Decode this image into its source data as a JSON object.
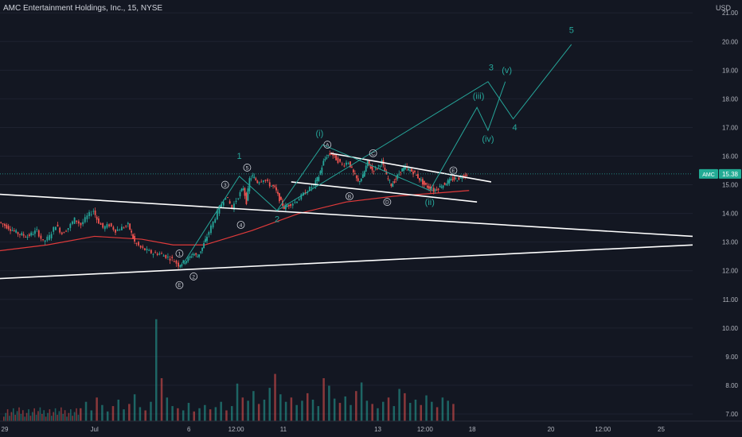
{
  "header": {
    "title": "AMC Entertainment Holdings, Inc., 15, NYSE",
    "currency": "USD"
  },
  "colors": {
    "background": "#131722",
    "up": "#26a69a",
    "down": "#ef5350",
    "wave": "#26a69a",
    "ma": "#e03a3a",
    "line": "#ffffff",
    "axis_text": "#b2b5be",
    "price_badge": "#22ab94"
  },
  "chart_data": {
    "type": "candlestick",
    "symbol": "AMC",
    "last_price": 15.38,
    "last_price_label": "15.38",
    "y_axis": {
      "range": [
        6.75,
        21.45
      ],
      "ticks": [
        {
          "value": 21,
          "label": "21.00"
        },
        {
          "value": 20,
          "label": "20.00"
        },
        {
          "value": 19,
          "label": "19.00"
        },
        {
          "value": 18,
          "label": "18.00"
        },
        {
          "value": 17,
          "label": "17.00"
        },
        {
          "value": 16,
          "label": "16.00"
        },
        {
          "value": 15,
          "label": "15.00"
        },
        {
          "value": 14,
          "label": "14.00"
        },
        {
          "value": 13,
          "label": "13.00"
        },
        {
          "value": 12,
          "label": "12.00"
        },
        {
          "value": 11,
          "label": "11.00"
        },
        {
          "value": 10,
          "label": "10.00"
        },
        {
          "value": 9,
          "label": "9.00"
        },
        {
          "value": 8,
          "label": "8.00"
        },
        {
          "value": 7,
          "label": "7.00"
        }
      ]
    },
    "x_axis": {
      "ticks": [
        {
          "label": "29",
          "x": 0
        },
        {
          "label": "Jul",
          "x": 60
        },
        {
          "label": "6",
          "x": 120
        },
        {
          "label": "12:00",
          "x": 150
        },
        {
          "label": "11",
          "x": 180
        },
        {
          "label": "13",
          "x": 240
        },
        {
          "label": "12:00",
          "x": 270
        },
        {
          "label": "18",
          "x": 300
        },
        {
          "label": "20",
          "x": 350
        },
        {
          "label": "12:00",
          "x": 383
        },
        {
          "label": "25",
          "x": 420
        }
      ]
    },
    "price_path": [
      [
        0,
        13.7
      ],
      [
        6,
        13.5
      ],
      [
        12,
        13.3
      ],
      [
        18,
        13.2
      ],
      [
        24,
        13.4
      ],
      [
        28,
        13.0
      ],
      [
        32,
        13.2
      ],
      [
        36,
        13.6
      ],
      [
        40,
        13.3
      ],
      [
        44,
        13.5
      ],
      [
        48,
        13.8
      ],
      [
        52,
        13.6
      ],
      [
        56,
        13.9
      ],
      [
        60,
        14.1
      ],
      [
        62,
        13.8
      ],
      [
        66,
        13.5
      ],
      [
        70,
        13.6
      ],
      [
        74,
        13.4
      ],
      [
        78,
        13.5
      ],
      [
        82,
        13.6
      ],
      [
        84,
        13.3
      ],
      [
        86,
        13.0
      ],
      [
        90,
        12.8
      ],
      [
        94,
        12.7
      ],
      [
        98,
        12.6
      ],
      [
        102,
        12.6
      ],
      [
        106,
        12.5
      ],
      [
        110,
        12.4
      ],
      [
        114,
        12.2
      ],
      [
        117,
        12.3
      ],
      [
        120,
        12.4
      ],
      [
        123,
        12.6
      ],
      [
        126,
        12.5
      ],
      [
        129,
        12.8
      ],
      [
        132,
        13.2
      ],
      [
        136,
        13.7
      ],
      [
        140,
        14.2
      ],
      [
        144,
        14.6
      ],
      [
        148,
        14.2
      ],
      [
        152,
        14.6
      ],
      [
        155,
        14.9
      ],
      [
        157,
        14.4
      ],
      [
        159,
        15.2
      ],
      [
        161,
        15.3
      ],
      [
        164,
        15.1
      ],
      [
        168,
        15.2
      ],
      [
        172,
        15.0
      ],
      [
        175,
        14.9
      ],
      [
        178,
        14.5
      ],
      [
        181,
        14.2
      ],
      [
        184,
        14.3
      ],
      [
        188,
        14.4
      ],
      [
        192,
        14.6
      ],
      [
        196,
        14.8
      ],
      [
        200,
        15.0
      ],
      [
        203,
        15.3
      ],
      [
        206,
        15.8
      ],
      [
        208,
        16.0
      ],
      [
        211,
        16.1
      ],
      [
        214,
        15.9
      ],
      [
        218,
        15.7
      ],
      [
        222,
        15.8
      ],
      [
        225,
        15.4
      ],
      [
        228,
        15.1
      ],
      [
        231,
        15.3
      ],
      [
        234,
        15.8
      ],
      [
        237,
        15.5
      ],
      [
        240,
        15.6
      ],
      [
        243,
        15.8
      ],
      [
        246,
        15.3
      ],
      [
        249,
        15.0
      ],
      [
        252,
        15.2
      ],
      [
        255,
        15.5
      ],
      [
        258,
        15.6
      ],
      [
        261,
        15.5
      ],
      [
        264,
        15.4
      ],
      [
        267,
        15.2
      ],
      [
        270,
        15.0
      ],
      [
        273,
        14.9
      ],
      [
        276,
        14.8
      ],
      [
        279,
        14.9
      ],
      [
        282,
        15.0
      ],
      [
        285,
        15.1
      ],
      [
        288,
        15.2
      ],
      [
        291,
        15.2
      ],
      [
        294,
        15.3
      ],
      [
        297,
        15.38
      ]
    ],
    "moving_average": [
      [
        0,
        12.7
      ],
      [
        30,
        12.9
      ],
      [
        60,
        13.2
      ],
      [
        90,
        13.1
      ],
      [
        110,
        12.9
      ],
      [
        130,
        12.9
      ],
      [
        160,
        13.4
      ],
      [
        190,
        14.0
      ],
      [
        220,
        14.4
      ],
      [
        250,
        14.6
      ],
      [
        275,
        14.7
      ],
      [
        298,
        14.8
      ]
    ],
    "volume": {
      "range": [
        0,
        1
      ],
      "bars": [
        0.12,
        0.18,
        0.1,
        0.22,
        0.15,
        0.09,
        0.14,
        0.2,
        0.11,
        0.16,
        0.25,
        0.13,
        0.1,
        0.18,
        0.95,
        0.4,
        0.22,
        0.14,
        0.12,
        0.1,
        0.17,
        0.09,
        0.12,
        0.15,
        0.11,
        0.13,
        0.18,
        0.1,
        0.14,
        0.35,
        0.22,
        0.19,
        0.28,
        0.16,
        0.2,
        0.31,
        0.44,
        0.25,
        0.18,
        0.22,
        0.15,
        0.19,
        0.26,
        0.2,
        0.14,
        0.4,
        0.33,
        0.21,
        0.17,
        0.23,
        0.15,
        0.28,
        0.36,
        0.19,
        0.16,
        0.12,
        0.18,
        0.22,
        0.14,
        0.3,
        0.26,
        0.17,
        0.2,
        0.15,
        0.24,
        0.18,
        0.13,
        0.22,
        0.19,
        0.16
      ]
    },
    "trendlines": [
      {
        "name": "upper-wedge-line",
        "from": [
          -10,
          14.7
        ],
        "to": [
          440,
          13.2
        ]
      },
      {
        "name": "lower-wedge-line",
        "from": [
          -10,
          11.7
        ],
        "to": [
          440,
          12.9
        ]
      },
      {
        "name": "triangle-upper-line",
        "from": [
          210,
          16.1
        ],
        "to": [
          312,
          15.1
        ]
      },
      {
        "name": "triangle-lower-line",
        "from": [
          185,
          15.1
        ],
        "to": [
          303,
          14.4
        ]
      }
    ],
    "wave_lines": [
      {
        "name": "wave-impulse-path",
        "points": [
          [
            117,
            12.3
          ],
          [
            152,
            15.3
          ],
          [
            176,
            14.1
          ],
          [
            205,
            16.4
          ],
          [
            273,
            14.8
          ],
          [
            303,
            17.7
          ],
          [
            310,
            16.9
          ],
          [
            321,
            18.6
          ]
        ]
      },
      {
        "name": "wave-projection-path",
        "points": [
          [
            176,
            14.1
          ],
          [
            310,
            18.6
          ],
          [
            326,
            17.3
          ],
          [
            363,
            19.9
          ]
        ]
      }
    ],
    "wave_labels": [
      {
        "text": "1",
        "x": 152,
        "y": 15.9,
        "style": "plain"
      },
      {
        "text": "2",
        "x": 176,
        "y": 13.7,
        "style": "plain"
      },
      {
        "text": "3",
        "x": 312,
        "y": 19.0,
        "style": "plain"
      },
      {
        "text": "4",
        "x": 327,
        "y": 16.9,
        "style": "plain"
      },
      {
        "text": "5",
        "x": 363,
        "y": 20.3,
        "style": "plain"
      },
      {
        "text": "(i)",
        "x": 203,
        "y": 16.7,
        "style": "plain"
      },
      {
        "text": "(ii)",
        "x": 273,
        "y": 14.3,
        "style": "plain"
      },
      {
        "text": "(iii)",
        "x": 304,
        "y": 18.0,
        "style": "plain"
      },
      {
        "text": "(iv)",
        "x": 310,
        "y": 16.5,
        "style": "plain"
      },
      {
        "text": "(v)",
        "x": 322,
        "y": 18.9,
        "style": "plain"
      },
      {
        "text": "1",
        "x": 114,
        "y": 12.6,
        "style": "circle"
      },
      {
        "text": "2",
        "x": 123,
        "y": 11.8,
        "style": "circle"
      },
      {
        "text": "3",
        "x": 143,
        "y": 15.0,
        "style": "circle"
      },
      {
        "text": "4",
        "x": 153,
        "y": 13.6,
        "style": "circle"
      },
      {
        "text": "5",
        "x": 157,
        "y": 15.6,
        "style": "circle"
      },
      {
        "text": "E",
        "x": 114,
        "y": 11.5,
        "style": "circle"
      },
      {
        "text": "A",
        "x": 208,
        "y": 16.4,
        "style": "circle"
      },
      {
        "text": "B",
        "x": 222,
        "y": 14.6,
        "style": "circle"
      },
      {
        "text": "C",
        "x": 237,
        "y": 16.1,
        "style": "circle"
      },
      {
        "text": "D",
        "x": 246,
        "y": 14.4,
        "style": "circle"
      },
      {
        "text": "E",
        "x": 288,
        "y": 15.5,
        "style": "circle"
      }
    ]
  }
}
